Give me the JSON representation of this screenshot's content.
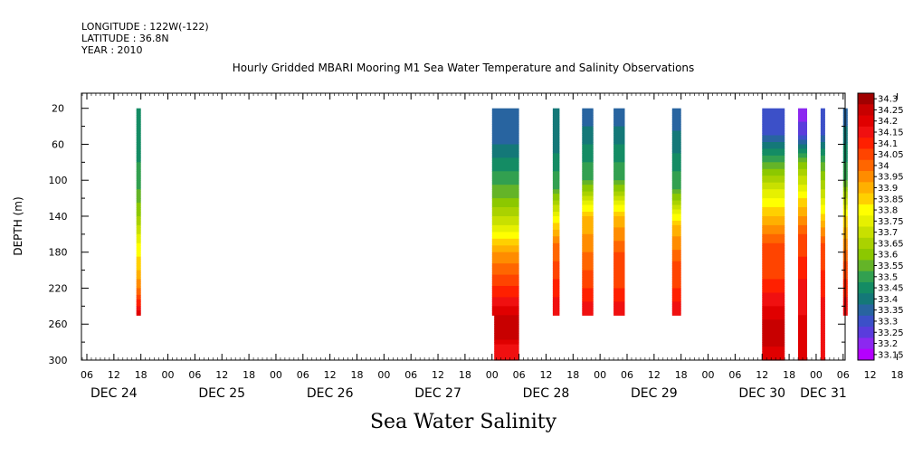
{
  "header": {
    "longitude": "LONGITUDE : 122W(-122)",
    "latitude": "LATITUDE : 36.8N",
    "year": "YEAR : 2010"
  },
  "chart_data": {
    "type": "heatmap",
    "title": "Hourly Gridded MBARI Mooring M1 Sea Water Temperature and Salinity Observations",
    "variable_title": "Sea Water Salinity",
    "ylabel": "DEPTH (m)",
    "ylim": [
      300,
      0
    ],
    "y_tick_labels": [
      "20",
      "60",
      "100",
      "140",
      "180",
      "220",
      "260",
      "300"
    ],
    "x_hour_labels": [
      "06",
      "12",
      "18",
      "00",
      "06",
      "12",
      "18",
      "00",
      "06",
      "12",
      "18",
      "00",
      "06",
      "12",
      "18",
      "00",
      "06",
      "12",
      "18",
      "00",
      "06",
      "12",
      "18",
      "00",
      "06",
      "12",
      "18",
      "00",
      "06",
      "12",
      "18",
      "00",
      "06"
    ],
    "x_day_labels": [
      "DEC 24",
      "DEC 25",
      "DEC 26",
      "DEC 27",
      "DEC 28",
      "DEC 29",
      "DEC 30",
      "DEC 31"
    ],
    "colorbar_labels": [
      "34.3",
      "34.25",
      "34.2",
      "34.15",
      "34.1",
      "34.05",
      "34",
      "33.95",
      "33.9",
      "33.85",
      "33.8",
      "33.75",
      "33.7",
      "33.65",
      "33.6",
      "33.55",
      "33.5",
      "33.45",
      "33.4",
      "33.35",
      "33.3",
      "33.25",
      "33.2",
      "33.15"
    ],
    "colorbar_colors": [
      "#a00000",
      "#c80000",
      "#e00000",
      "#f01010",
      "#ff2000",
      "#ff4400",
      "#ff6600",
      "#ff8c00",
      "#ffb000",
      "#ffd000",
      "#ffff00",
      "#e6f000",
      "#c8e000",
      "#aad200",
      "#8cc800",
      "#64b428",
      "#32a050",
      "#148c64",
      "#147878",
      "#2864a0",
      "#3c50c8",
      "#5a3cdc",
      "#8c28f0",
      "#b400ff"
    ],
    "data_columns": [
      {
        "day": "DEC 24",
        "start_hour": 17,
        "end_hour": 18,
        "depth_max": 250,
        "profile": [
          [
            20,
            33.45
          ],
          [
            80,
            33.5
          ],
          [
            110,
            33.55
          ],
          [
            140,
            33.65
          ],
          [
            170,
            33.8
          ],
          [
            200,
            33.9
          ],
          [
            220,
            34.0
          ],
          [
            240,
            34.15
          ],
          [
            250,
            34.25
          ]
        ]
      },
      {
        "day": "DEC 28",
        "start_hour": 0,
        "end_hour": 6,
        "depth_max": 250,
        "profile": [
          [
            20,
            33.35
          ],
          [
            60,
            33.4
          ],
          [
            90,
            33.5
          ],
          [
            120,
            33.6
          ],
          [
            150,
            33.75
          ],
          [
            180,
            33.95
          ],
          [
            205,
            34.05
          ],
          [
            230,
            34.15
          ],
          [
            250,
            34.25
          ]
        ]
      },
      {
        "day": "DEC 28",
        "start_hour": 0.5,
        "end_hour": 6,
        "depth_min": 250,
        "depth_max": 300,
        "profile": [
          [
            250,
            34.25
          ],
          [
            270,
            34.3
          ],
          [
            290,
            34.15
          ],
          [
            300,
            34.15
          ]
        ]
      },
      {
        "day": "DEC 28",
        "start_hour": 13.5,
        "end_hour": 15,
        "depth_max": 250,
        "profile": [
          [
            20,
            33.4
          ],
          [
            70,
            33.45
          ],
          [
            110,
            33.55
          ],
          [
            140,
            33.8
          ],
          [
            170,
            34.0
          ],
          [
            210,
            34.1
          ],
          [
            250,
            34.2
          ]
        ]
      },
      {
        "day": "DEC 28",
        "start_hour": 20,
        "end_hour": 22.5,
        "depth_max": 250,
        "profile": [
          [
            20,
            33.35
          ],
          [
            60,
            33.45
          ],
          [
            100,
            33.55
          ],
          [
            140,
            33.9
          ],
          [
            180,
            34.0
          ],
          [
            220,
            34.1
          ],
          [
            250,
            34.2
          ]
        ]
      },
      {
        "day": "DEC 29",
        "start_hour": 3,
        "end_hour": 5.5,
        "depth_max": 250,
        "profile": [
          [
            20,
            33.35
          ],
          [
            60,
            33.45
          ],
          [
            100,
            33.55
          ],
          [
            140,
            33.9
          ],
          [
            180,
            34.05
          ],
          [
            220,
            34.1
          ],
          [
            250,
            34.2
          ]
        ]
      },
      {
        "day": "DEC 29",
        "start_hour": 16,
        "end_hour": 18,
        "depth_max": 250,
        "profile": [
          [
            20,
            33.35
          ],
          [
            70,
            33.45
          ],
          [
            110,
            33.55
          ],
          [
            150,
            33.9
          ],
          [
            190,
            34.05
          ],
          [
            220,
            34.1
          ],
          [
            250,
            34.2
          ]
        ]
      },
      {
        "day": "DEC 30",
        "start_hour": 12,
        "end_hour": 17,
        "depth_max": 300,
        "profile": [
          [
            20,
            33.3
          ],
          [
            50,
            33.35
          ],
          [
            80,
            33.55
          ],
          [
            110,
            33.75
          ],
          [
            140,
            33.9
          ],
          [
            170,
            34.05
          ],
          [
            210,
            34.1
          ],
          [
            240,
            34.2
          ],
          [
            270,
            34.3
          ],
          [
            300,
            34.2
          ]
        ]
      },
      {
        "day": "DEC 30",
        "start_hour": 20,
        "end_hour": 22,
        "depth_max": 300,
        "profile": [
          [
            20,
            33.2
          ],
          [
            50,
            33.3
          ],
          [
            80,
            33.6
          ],
          [
            120,
            33.85
          ],
          [
            160,
            34.05
          ],
          [
            210,
            34.15
          ],
          [
            250,
            34.2
          ],
          [
            300,
            34.2
          ]
        ]
      },
      {
        "day": "DEC 31",
        "start_hour": 1,
        "end_hour": 2,
        "depth_max": 300,
        "profile": [
          [
            20,
            33.3
          ],
          [
            50,
            33.35
          ],
          [
            80,
            33.55
          ],
          [
            120,
            33.75
          ],
          [
            170,
            34.05
          ],
          [
            230,
            34.15
          ],
          [
            300,
            34.2
          ]
        ]
      },
      {
        "day": "DEC 31",
        "start_hour": 6,
        "end_hour": 7,
        "depth_max": 250,
        "profile": [
          [
            20,
            33.35
          ],
          [
            60,
            33.45
          ],
          [
            100,
            33.55
          ],
          [
            140,
            33.85
          ],
          [
            190,
            34.05
          ],
          [
            250,
            34.2
          ]
        ]
      }
    ]
  }
}
